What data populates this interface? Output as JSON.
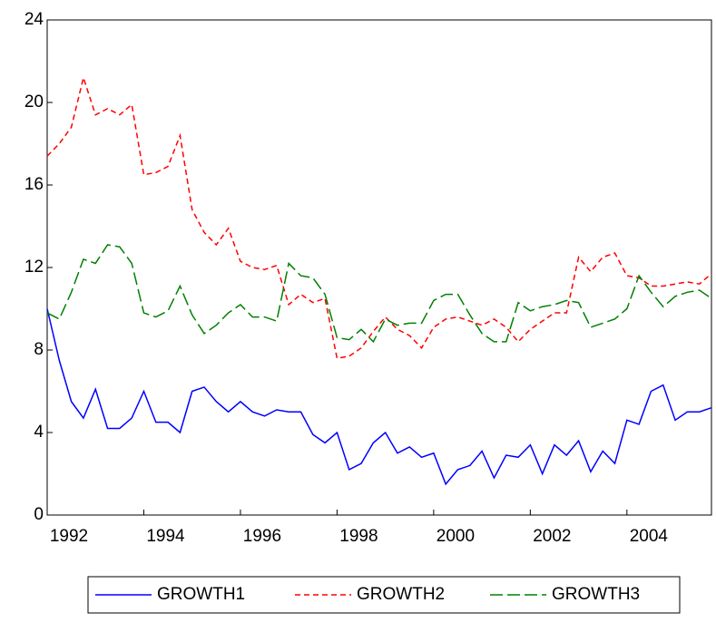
{
  "chart_data": {
    "type": "line",
    "x": [
      1992,
      1992.25,
      1992.5,
      1992.75,
      1993,
      1993.25,
      1993.5,
      1993.75,
      1994,
      1994.25,
      1994.5,
      1994.75,
      1995,
      1995.25,
      1995.5,
      1995.75,
      1996,
      1996.25,
      1996.5,
      1996.75,
      1997,
      1997.25,
      1997.5,
      1997.75,
      1998,
      1998.25,
      1998.5,
      1998.75,
      1999,
      1999.25,
      1999.5,
      1999.75,
      2000,
      2000.25,
      2000.5,
      2000.75,
      2001,
      2001.25,
      2001.5,
      2001.75,
      2002,
      2002.25,
      2002.5,
      2002.75,
      2003,
      2003.25,
      2003.5,
      2003.75,
      2004,
      2004.25,
      2004.5,
      2004.75,
      2005,
      2005.25,
      2005.5,
      2005.75
    ],
    "series": [
      {
        "name": "GROWTH1",
        "color": "#0000ff",
        "dash": "none",
        "values": [
          10,
          7.5,
          5.5,
          4.7,
          6.1,
          4.2,
          4.2,
          4.7,
          6.0,
          4.5,
          4.5,
          4.0,
          6.0,
          6.2,
          5.5,
          5.0,
          5.5,
          5.0,
          4.8,
          5.1,
          5.0,
          5.0,
          3.9,
          3.5,
          4.0,
          2.2,
          2.5,
          3.5,
          4.0,
          3.0,
          3.3,
          2.8,
          3.0,
          1.5,
          2.2,
          2.4,
          3.1,
          1.8,
          2.9,
          2.8,
          3.4,
          2.0,
          3.4,
          2.9,
          3.6,
          2.1,
          3.1,
          2.5,
          4.6,
          4.4,
          6.0,
          6.3,
          4.6,
          5.0,
          5.0,
          5.2
        ]
      },
      {
        "name": "GROWTH2",
        "color": "#ff0000",
        "dash": "6 4",
        "values": [
          17.4,
          18.0,
          18.8,
          21.2,
          19.4,
          19.7,
          19.4,
          19.9,
          16.5,
          16.6,
          16.9,
          18.4,
          14.8,
          13.7,
          13.1,
          13.9,
          12.3,
          12.0,
          11.9,
          12.1,
          10.2,
          10.7,
          10.3,
          10.5,
          7.6,
          7.7,
          8.1,
          8.9,
          9.6,
          9.0,
          8.7,
          8.1,
          9.1,
          9.5,
          9.6,
          9.4,
          9.2,
          9.5,
          9.1,
          8.4,
          9.0,
          9.4,
          9.8,
          9.8,
          12.5,
          11.8,
          12.5,
          12.7,
          11.6,
          11.5,
          11.1,
          11.1,
          11.2,
          11.3,
          11.2,
          11.7
        ]
      },
      {
        "name": "GROWTH3",
        "color": "#008000",
        "dash": "14 5",
        "values": [
          9.8,
          9.5,
          10.8,
          12.4,
          12.2,
          13.1,
          13.0,
          12.2,
          9.8,
          9.6,
          9.9,
          11.1,
          9.7,
          8.8,
          9.2,
          9.8,
          10.2,
          9.6,
          9.6,
          9.4,
          12.2,
          11.6,
          11.5,
          10.7,
          8.6,
          8.5,
          9.0,
          8.4,
          9.5,
          9.2,
          9.3,
          9.3,
          10.4,
          10.7,
          10.7,
          9.7,
          8.8,
          8.4,
          8.4,
          10.3,
          9.9,
          10.1,
          10.2,
          10.4,
          10.3,
          9.1,
          9.3,
          9.5,
          10.0,
          11.6,
          10.8,
          10.1,
          10.6,
          10.8,
          10.9,
          10.5
        ]
      }
    ],
    "xlim": [
      1992,
      2005.75
    ],
    "xticks": [
      1992,
      1994,
      1996,
      1998,
      2000,
      2002,
      2004
    ],
    "ylim": [
      0,
      24
    ],
    "yticks": [
      0,
      4,
      8,
      12,
      16,
      20,
      24
    ],
    "legend": "bottom"
  }
}
